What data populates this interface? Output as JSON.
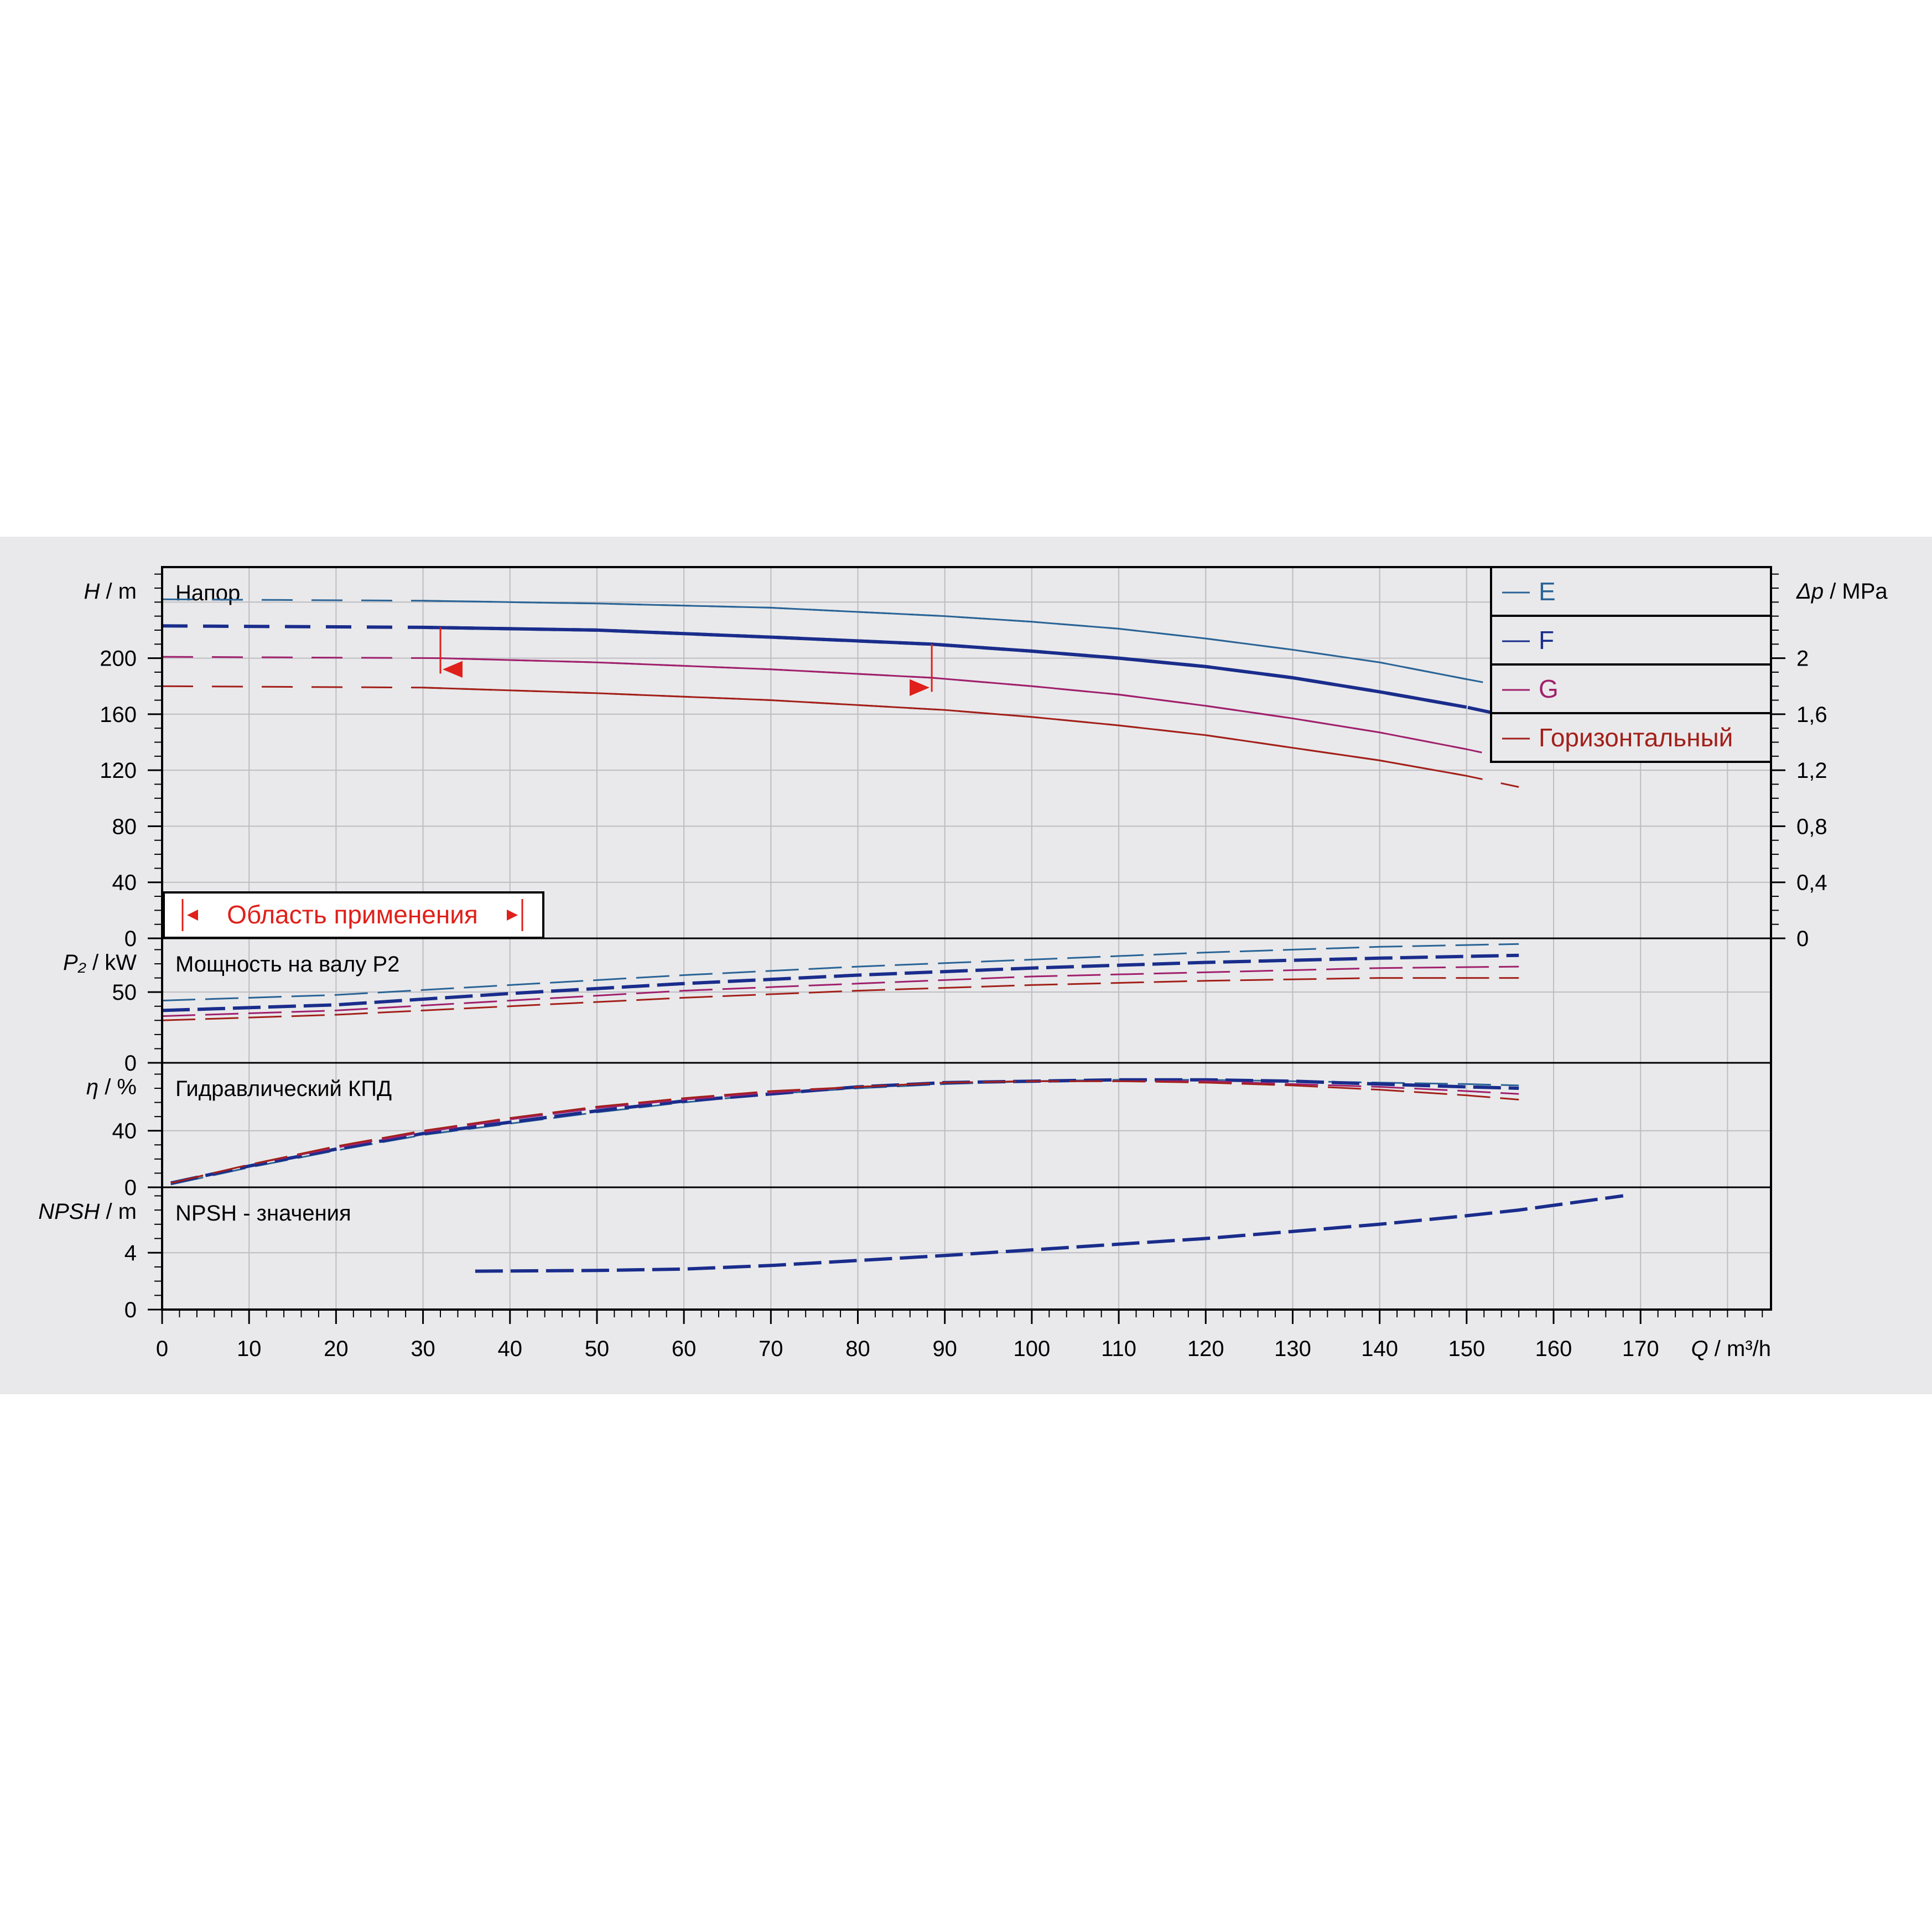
{
  "chart_data": {
    "type": "line",
    "x_axis": {
      "symbol": "Q",
      "unit": "m³/h",
      "range": [
        0,
        185
      ],
      "ticks": [
        0,
        10,
        20,
        30,
        40,
        50,
        60,
        70,
        80,
        90,
        100,
        110,
        120,
        130,
        140,
        150,
        160,
        170
      ],
      "tick_labels": [
        "0",
        "10",
        "20",
        "30",
        "40",
        "50",
        "60",
        "70",
        "80",
        "90",
        "100",
        "110",
        "120",
        "130",
        "140",
        "150",
        "160",
        "170"
      ]
    },
    "legend": {
      "placement": "top-right",
      "entries": [
        {
          "label": "E",
          "color": "#2a6496"
        },
        {
          "label": "F",
          "color": "#1a2d8c"
        },
        {
          "label": "G",
          "color": "#a0206c"
        },
        {
          "label": "Горизонтальный",
          "color": "#a3201a"
        }
      ]
    },
    "application_range": {
      "label": "Область применения",
      "q_min": 32,
      "q_max": 88.5
    },
    "panels": [
      {
        "id": "head",
        "title": "Напор",
        "y_symbol": "H",
        "y_unit": "m",
        "y_range": [
          0,
          265
        ],
        "y_ticks": [
          0,
          40,
          80,
          120,
          160,
          200
        ],
        "y_tick_labels": [
          "0",
          "40",
          "80",
          "120",
          "160",
          "200"
        ],
        "secondary_axis": {
          "symbol": "Δp",
          "unit": "MPa",
          "range": [
            0,
            2.65
          ],
          "ticks": [
            0,
            0.4,
            0.8,
            1.2,
            1.6,
            2
          ],
          "tick_labels": [
            "0",
            "0,4",
            "0,8",
            "1,2",
            "1,6",
            "2"
          ]
        },
        "series": [
          {
            "name": "E",
            "points": [
              [
                0,
                242
              ],
              [
                30,
                241
              ],
              [
                50,
                239
              ],
              [
                70,
                236
              ],
              [
                90,
                230
              ],
              [
                100,
                226
              ],
              [
                110,
                221
              ],
              [
                120,
                214
              ],
              [
                130,
                206
              ],
              [
                140,
                197
              ],
              [
                150,
                185
              ],
              [
                156,
                178
              ]
            ]
          },
          {
            "name": "F",
            "points": [
              [
                0,
                223
              ],
              [
                30,
                222
              ],
              [
                50,
                220
              ],
              [
                70,
                215
              ],
              [
                88.5,
                210
              ],
              [
                100,
                205
              ],
              [
                110,
                200
              ],
              [
                120,
                194
              ],
              [
                130,
                186
              ],
              [
                140,
                176
              ],
              [
                150,
                165
              ],
              [
                156,
                157
              ]
            ]
          },
          {
            "name": "G",
            "points": [
              [
                0,
                201
              ],
              [
                32,
                200
              ],
              [
                50,
                197
              ],
              [
                70,
                192
              ],
              [
                88.5,
                186
              ],
              [
                100,
                180
              ],
              [
                110,
                174
              ],
              [
                120,
                166
              ],
              [
                130,
                157
              ],
              [
                140,
                147
              ],
              [
                150,
                135
              ],
              [
                156,
                127
              ]
            ]
          },
          {
            "name": "Горизонтальный",
            "points": [
              [
                0,
                180
              ],
              [
                30,
                179
              ],
              [
                50,
                175
              ],
              [
                70,
                170
              ],
              [
                90,
                163
              ],
              [
                100,
                158
              ],
              [
                110,
                152
              ],
              [
                120,
                145
              ],
              [
                130,
                136
              ],
              [
                140,
                127
              ],
              [
                150,
                116
              ],
              [
                156,
                108
              ]
            ]
          }
        ]
      },
      {
        "id": "power",
        "title": "Мощность на валу P2",
        "y_symbol": "P₂",
        "y_unit": "kW",
        "y_range": [
          0,
          88
        ],
        "y_ticks": [
          0,
          50
        ],
        "y_tick_labels": [
          "0",
          "50"
        ],
        "series": [
          {
            "name": "E",
            "points": [
              [
                0,
                44
              ],
              [
                20,
                48
              ],
              [
                40,
                55
              ],
              [
                60,
                62
              ],
              [
                80,
                68
              ],
              [
                100,
                73
              ],
              [
                120,
                78
              ],
              [
                140,
                82
              ],
              [
                156,
                84
              ]
            ]
          },
          {
            "name": "F",
            "points": [
              [
                0,
                37
              ],
              [
                20,
                41
              ],
              [
                40,
                49
              ],
              [
                60,
                56
              ],
              [
                80,
                62
              ],
              [
                100,
                67
              ],
              [
                120,
                71
              ],
              [
                140,
                74
              ],
              [
                156,
                76
              ]
            ]
          },
          {
            "name": "G",
            "points": [
              [
                0,
                33
              ],
              [
                20,
                37
              ],
              [
                40,
                44
              ],
              [
                60,
                51
              ],
              [
                80,
                56
              ],
              [
                100,
                61
              ],
              [
                120,
                64
              ],
              [
                140,
                67
              ],
              [
                156,
                68
              ]
            ]
          },
          {
            "name": "Горизонтальный",
            "points": [
              [
                0,
                30
              ],
              [
                20,
                34
              ],
              [
                40,
                40
              ],
              [
                60,
                46
              ],
              [
                80,
                51
              ],
              [
                100,
                55
              ],
              [
                120,
                58
              ],
              [
                140,
                60
              ],
              [
                156,
                60
              ]
            ]
          }
        ]
      },
      {
        "id": "efficiency",
        "title": "Гидравлический КПД",
        "y_symbol": "η",
        "y_unit": "%",
        "y_range": [
          0,
          88
        ],
        "y_ticks": [
          0,
          40
        ],
        "y_tick_labels": [
          "0",
          "40"
        ],
        "series": [
          {
            "name": "E",
            "points": [
              [
                1,
                2
              ],
              [
                10,
                14
              ],
              [
                20,
                26
              ],
              [
                30,
                37
              ],
              [
                40,
                45
              ],
              [
                50,
                53
              ],
              [
                60,
                60
              ],
              [
                70,
                66
              ],
              [
                80,
                70
              ],
              [
                90,
                73
              ],
              [
                100,
                75
              ],
              [
                110,
                76
              ],
              [
                120,
                76
              ],
              [
                130,
                75
              ],
              [
                140,
                74
              ],
              [
                150,
                73
              ],
              [
                156,
                72
              ]
            ]
          },
          {
            "name": "F",
            "points": [
              [
                1,
                3
              ],
              [
                10,
                15
              ],
              [
                20,
                27
              ],
              [
                30,
                38
              ],
              [
                40,
                46
              ],
              [
                50,
                54
              ],
              [
                60,
                61
              ],
              [
                70,
                66
              ],
              [
                80,
                71
              ],
              [
                90,
                74
              ],
              [
                100,
                75
              ],
              [
                110,
                76
              ],
              [
                120,
                76
              ],
              [
                130,
                75
              ],
              [
                140,
                73
              ],
              [
                150,
                71
              ],
              [
                156,
                70
              ]
            ]
          },
          {
            "name": "G",
            "points": [
              [
                1,
                3
              ],
              [
                10,
                16
              ],
              [
                20,
                28
              ],
              [
                30,
                39
              ],
              [
                40,
                48
              ],
              [
                50,
                56
              ],
              [
                60,
                62
              ],
              [
                70,
                67
              ],
              [
                80,
                71
              ],
              [
                90,
                74
              ],
              [
                100,
                75
              ],
              [
                110,
                75
              ],
              [
                120,
                75
              ],
              [
                130,
                73
              ],
              [
                140,
                71
              ],
              [
                150,
                68
              ],
              [
                156,
                66
              ]
            ]
          },
          {
            "name": "Горизонтальный",
            "points": [
              [
                1,
                3
              ],
              [
                10,
                16
              ],
              [
                20,
                29
              ],
              [
                30,
                40
              ],
              [
                40,
                49
              ],
              [
                50,
                57
              ],
              [
                60,
                63
              ],
              [
                70,
                68
              ],
              [
                80,
                71
              ],
              [
                90,
                74
              ],
              [
                100,
                75
              ],
              [
                110,
                75
              ],
              [
                120,
                74
              ],
              [
                130,
                72
              ],
              [
                140,
                69
              ],
              [
                150,
                65
              ],
              [
                156,
                62
              ]
            ]
          }
        ]
      },
      {
        "id": "npsh",
        "title": "NPSH - значения",
        "y_symbol": "NPSH",
        "y_unit": "m",
        "y_range": [
          0,
          8.6
        ],
        "y_ticks": [
          0,
          4
        ],
        "y_tick_labels": [
          "0",
          "4"
        ],
        "series": [
          {
            "name": "F",
            "points": [
              [
                36,
                2.7
              ],
              [
                50,
                2.75
              ],
              [
                60,
                2.85
              ],
              [
                70,
                3.1
              ],
              [
                80,
                3.45
              ],
              [
                90,
                3.8
              ],
              [
                100,
                4.2
              ],
              [
                110,
                4.6
              ],
              [
                120,
                5.0
              ],
              [
                130,
                5.5
              ],
              [
                140,
                6.0
              ],
              [
                150,
                6.6
              ],
              [
                156,
                7.0
              ],
              [
                168,
                8.0
              ]
            ]
          }
        ]
      }
    ]
  }
}
